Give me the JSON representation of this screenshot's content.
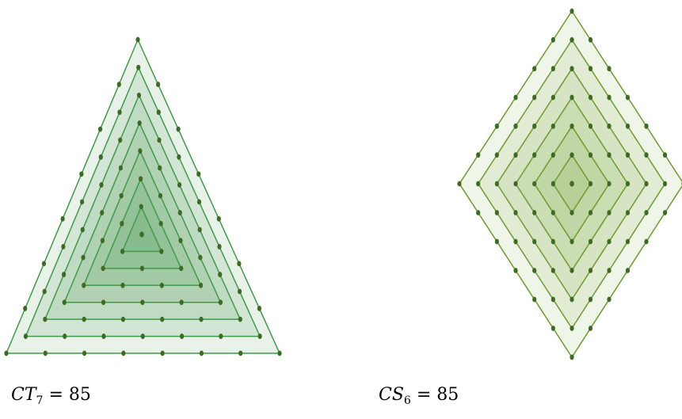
{
  "figures": [
    {
      "id": "centered-triangular",
      "shape": "triangle",
      "layers": 7,
      "label": {
        "symbol": "CT",
        "subscript": "7",
        "equals": "= 85"
      }
    },
    {
      "id": "centered-square",
      "shape": "square",
      "layers": 6,
      "label": {
        "symbol": "CS",
        "subscript": "6",
        "equals": "= 85"
      }
    }
  ],
  "colors": {
    "triangle_fill": "#2e8b3a",
    "triangle_stroke": "#3f9a4a",
    "square_fill": "#7aa53a",
    "square_stroke": "#6f9a2c",
    "dot": "#3d6b24"
  }
}
